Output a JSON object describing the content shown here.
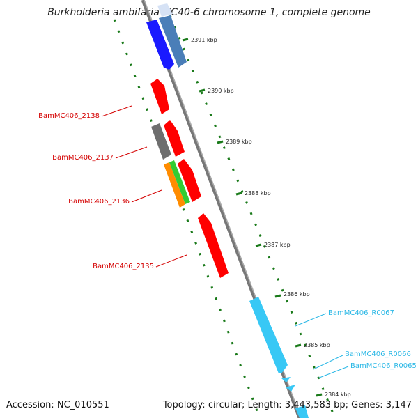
{
  "header": {
    "title": "Burkholderia ambifaria MC40-6 chromosome 1, complete genome"
  },
  "footer": {
    "accession_label": "Accession:",
    "accession": "NC_010551",
    "topology_label": "Topology:",
    "topology": "circular",
    "length_label": "Length:",
    "length": "3,443,583 bp",
    "genes_label": "Genes:",
    "genes": "3,147"
  },
  "map": {
    "ticks": [
      "2391 kbp",
      "2390 kbp",
      "2389 kbp",
      "2388 kbp",
      "2387 kbp",
      "2386 kbp",
      "2385 kbp",
      "2384 kbp"
    ],
    "gene_labels": [
      {
        "name": "BamMC406_2138",
        "color": "#d40000"
      },
      {
        "name": "BamMC406_2137",
        "color": "#d40000"
      },
      {
        "name": "BamMC406_2136",
        "color": "#d40000"
      },
      {
        "name": "BamMC406_2135",
        "color": "#d40000"
      },
      {
        "name": "BamMC406_R0067",
        "color": "#2bb8e6"
      },
      {
        "name": "BamMC406_R0066",
        "color": "#2bb8e6"
      },
      {
        "name": "BamMC406_R0065",
        "color": "#2bb8e6"
      }
    ],
    "colors": {
      "backbone": "#7a7a7a",
      "tick_dots": "#1a7a1a",
      "gene_red": "#ff0000",
      "gene_blue": "#1a1aff",
      "gene_steelblue": "#4a7eb8",
      "gene_lightblue": "#d6e2f5",
      "gene_gray": "#707070",
      "gene_orange": "#ff8c00",
      "gene_green": "#33cc33",
      "gene_cyan": "#38c8f5"
    }
  }
}
